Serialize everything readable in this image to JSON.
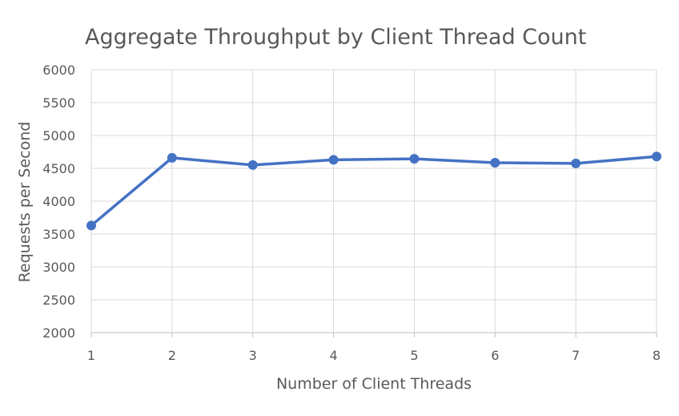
{
  "chart_data": {
    "type": "line",
    "title": "Aggregate Throughput by Client Thread Count",
    "xlabel": "Number of Client Threads",
    "ylabel": "Requests per Second",
    "x": [
      1,
      2,
      3,
      4,
      5,
      6,
      7,
      8
    ],
    "series": [
      {
        "values": [
          3630,
          4660,
          4550,
          4630,
          4645,
          4585,
          4575,
          4680
        ],
        "color": "#4472c4"
      }
    ],
    "ylim": [
      2000,
      6000
    ],
    "yticks": [
      2000,
      2500,
      3000,
      3500,
      4000,
      4500,
      5000,
      5500,
      6000
    ],
    "xticks": [
      "1",
      "2",
      "3",
      "4",
      "5",
      "6",
      "7",
      "8"
    ],
    "grid": true,
    "legend": "none",
    "markers": "circle"
  }
}
